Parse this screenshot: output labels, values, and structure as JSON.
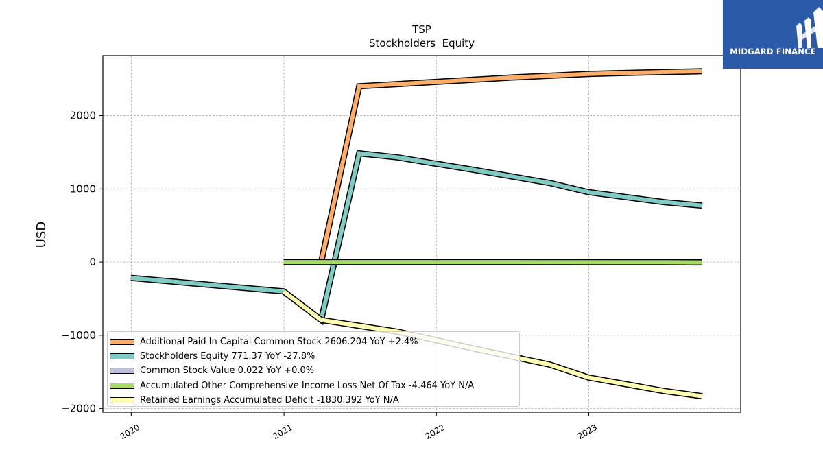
{
  "chart_data": {
    "type": "line",
    "title": "TSP",
    "subtitle": "Stockholders  Equity",
    "ylabel": "USD",
    "xlabel": "",
    "ylim": [
      -2050,
      2820
    ],
    "xlim": [
      "2019-10-25",
      "2023-12-31"
    ],
    "yticks": [
      -2000,
      -1000,
      0,
      1000,
      2000
    ],
    "ytick_labels": [
      "−2000",
      "−1000",
      "0",
      "1000",
      "2000"
    ],
    "xticks": [
      "2020-01-01",
      "2021-01-01",
      "2022-01-01",
      "2023-01-01"
    ],
    "xtick_labels": [
      "2020",
      "2021",
      "2022",
      "2023"
    ],
    "grid": true,
    "legend_position": "lower-left",
    "series": [
      {
        "name": "Additional Paid In Capital Common Stock  2606.204 YoY +2.4%",
        "color": "#fdae6b",
        "x": [
          "2021-03-31",
          "2021-06-30",
          "2021-12-31",
          "2022-06-30",
          "2022-12-31",
          "2023-06-30",
          "2023-09-30"
        ],
        "values": [
          0,
          2400,
          2460,
          2520,
          2570,
          2595,
          2606.204
        ]
      },
      {
        "name": "Stockholders Equity  771.37 YoY -27.8%",
        "color": "#80cbc4",
        "x": [
          "2019-12-31",
          "2020-12-31",
          "2021-03-31",
          "2021-06-30",
          "2021-09-30",
          "2022-03-31",
          "2022-09-30",
          "2022-12-31",
          "2023-06-30",
          "2023-09-30"
        ],
        "values": [
          -215,
          -400,
          -790,
          1485,
          1430,
          1260,
          1080,
          955,
          820,
          771.37
        ]
      },
      {
        "name": "Common Stock Value  0.022 YoY +0.0%",
        "color": "#bcbddc",
        "x": [
          "2020-12-31",
          "2021-06-30",
          "2022-06-30",
          "2023-06-30",
          "2023-09-30"
        ],
        "values": [
          0.022,
          0.022,
          0.022,
          0.022,
          0.022
        ]
      },
      {
        "name": "Accumulated Other Comprehensive Income Loss Net Of Tax  -4.464 YoY N/A",
        "color": "#a6d96a",
        "x": [
          "2020-12-31",
          "2021-06-30",
          "2022-06-30",
          "2023-06-30",
          "2023-09-30"
        ],
        "values": [
          0,
          0,
          0,
          -2,
          -4.464
        ]
      },
      {
        "name": "Retained Earnings Accumulated Deficit  -1830.392 YoY N/A",
        "color": "#ffffb2",
        "x": [
          "2020-12-31",
          "2021-03-31",
          "2021-06-30",
          "2021-09-30",
          "2022-03-31",
          "2022-09-30",
          "2022-12-31",
          "2023-06-30",
          "2023-09-30"
        ],
        "values": [
          -400,
          -790,
          -870,
          -950,
          -1180,
          -1400,
          -1575,
          -1760,
          -1830.392
        ]
      }
    ]
  },
  "logo": {
    "text": "MIDGARD FINANCE"
  }
}
